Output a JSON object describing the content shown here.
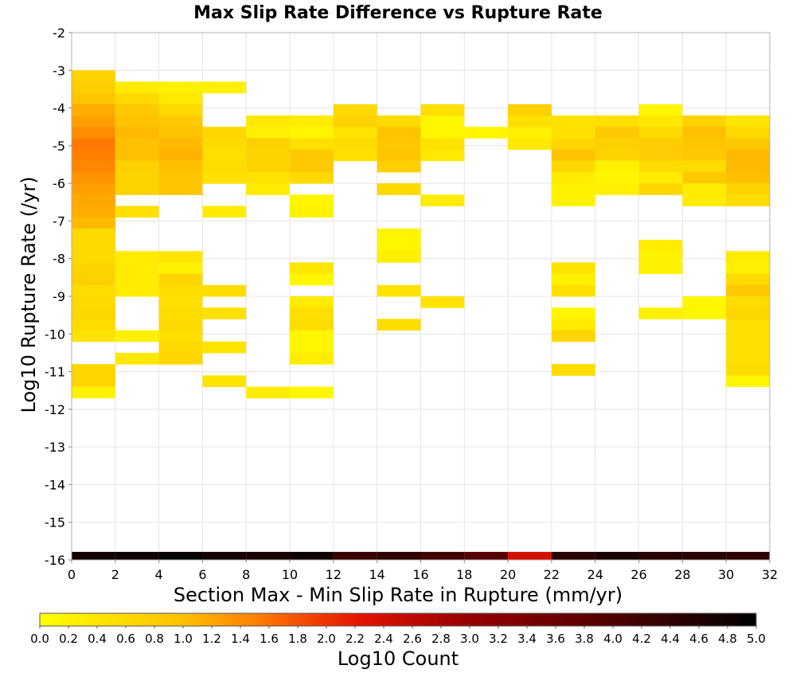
{
  "chart_data": {
    "type": "heatmap",
    "title": "Max Slip Rate Difference vs Rupture Rate",
    "xlabel": "Section Max - Min Slip Rate in Rupture (mm/yr)",
    "ylabel": "Log10 Rupture Rate (/yr)",
    "xlim": [
      0,
      32
    ],
    "ylim": [
      -16,
      -2
    ],
    "x_ticks": [
      "0",
      "2",
      "4",
      "6",
      "8",
      "10",
      "12",
      "14",
      "16",
      "18",
      "20",
      "22",
      "24",
      "26",
      "28",
      "30",
      "32"
    ],
    "y_ticks": [
      "-2",
      "-3",
      "-4",
      "-5",
      "-6",
      "-7",
      "-8",
      "-9",
      "-10",
      "-11",
      "-12",
      "-13",
      "-14",
      "-15",
      "-16"
    ],
    "bin_width_x": 2,
    "bin_height_y": 0.3,
    "grid": true,
    "colorbar": {
      "label": "Log10 Count",
      "min": 0.0,
      "max": 5.0,
      "ticks": [
        "0.0",
        "0.2",
        "0.4",
        "0.6",
        "0.8",
        "1.0",
        "1.2",
        "1.4",
        "1.6",
        "1.8",
        "2.0",
        "2.2",
        "2.4",
        "2.6",
        "2.8",
        "3.0",
        "3.2",
        "3.4",
        "3.6",
        "3.8",
        "4.0",
        "4.2",
        "4.4",
        "4.6",
        "4.8",
        "5.0"
      ]
    },
    "column_totals": [
      4.75,
      4.8,
      4.9,
      4.75,
      4.7,
      4.8,
      4.3,
      4.4,
      4.2,
      3.9,
      2.4,
      4.5,
      4.7,
      4.5,
      4.5,
      4.4
    ],
    "cells": [
      {
        "x": 0,
        "y": -3.0,
        "v": 0.7
      },
      {
        "x": 0,
        "y": -3.3,
        "v": 0.8
      },
      {
        "x": 0,
        "y": -3.6,
        "v": 0.9
      },
      {
        "x": 0,
        "y": -3.9,
        "v": 1.15
      },
      {
        "x": 0,
        "y": -4.2,
        "v": 1.25
      },
      {
        "x": 0,
        "y": -4.5,
        "v": 1.4
      },
      {
        "x": 0,
        "y": -4.8,
        "v": 1.55
      },
      {
        "x": 0,
        "y": -5.1,
        "v": 1.5
      },
      {
        "x": 0,
        "y": -5.4,
        "v": 1.45
      },
      {
        "x": 0,
        "y": -5.7,
        "v": 1.35
      },
      {
        "x": 0,
        "y": -6.0,
        "v": 1.25
      },
      {
        "x": 0,
        "y": -6.3,
        "v": 1.2
      },
      {
        "x": 0,
        "y": -6.6,
        "v": 1.15
      },
      {
        "x": 0,
        "y": -6.9,
        "v": 1.05
      },
      {
        "x": 0,
        "y": -7.2,
        "v": 0.6
      },
      {
        "x": 0,
        "y": -7.5,
        "v": 0.6
      },
      {
        "x": 0,
        "y": -7.8,
        "v": 0.6
      },
      {
        "x": 0,
        "y": -8.1,
        "v": 0.7
      },
      {
        "x": 0,
        "y": -8.4,
        "v": 0.75
      },
      {
        "x": 0,
        "y": -8.7,
        "v": 0.55
      },
      {
        "x": 0,
        "y": -9.0,
        "v": 0.6
      },
      {
        "x": 0,
        "y": -9.3,
        "v": 0.65
      },
      {
        "x": 0,
        "y": -9.6,
        "v": 0.55
      },
      {
        "x": 0,
        "y": -9.9,
        "v": 0.45
      },
      {
        "x": 0,
        "y": -10.8,
        "v": 0.65
      },
      {
        "x": 0,
        "y": -11.1,
        "v": 0.65
      },
      {
        "x": 0,
        "y": -11.4,
        "v": 0.2
      },
      {
        "x": 2,
        "y": -3.3,
        "v": 0.3
      },
      {
        "x": 2,
        "y": -3.6,
        "v": 0.6
      },
      {
        "x": 2,
        "y": -3.9,
        "v": 0.85
      },
      {
        "x": 2,
        "y": -4.2,
        "v": 0.95
      },
      {
        "x": 2,
        "y": -4.5,
        "v": 1.05
      },
      {
        "x": 2,
        "y": -4.8,
        "v": 1.0
      },
      {
        "x": 2,
        "y": -5.1,
        "v": 1.0
      },
      {
        "x": 2,
        "y": -5.4,
        "v": 0.75
      },
      {
        "x": 2,
        "y": -5.7,
        "v": 0.7
      },
      {
        "x": 2,
        "y": -6.0,
        "v": 0.7
      },
      {
        "x": 2,
        "y": -6.6,
        "v": 0.5
      },
      {
        "x": 2,
        "y": -7.8,
        "v": 0.3
      },
      {
        "x": 2,
        "y": -8.1,
        "v": 0.3
      },
      {
        "x": 2,
        "y": -8.4,
        "v": 0.3
      },
      {
        "x": 2,
        "y": -8.7,
        "v": 0.3
      },
      {
        "x": 2,
        "y": -9.9,
        "v": 0.25
      },
      {
        "x": 2,
        "y": -10.5,
        "v": 0.35
      },
      {
        "x": 4,
        "y": -3.3,
        "v": 0.2
      },
      {
        "x": 4,
        "y": -3.6,
        "v": 0.35
      },
      {
        "x": 4,
        "y": -3.9,
        "v": 0.6
      },
      {
        "x": 4,
        "y": -4.2,
        "v": 0.85
      },
      {
        "x": 4,
        "y": -4.5,
        "v": 0.95
      },
      {
        "x": 4,
        "y": -4.8,
        "v": 1.05
      },
      {
        "x": 4,
        "y": -5.1,
        "v": 1.1
      },
      {
        "x": 4,
        "y": -5.4,
        "v": 1.0
      },
      {
        "x": 4,
        "y": -5.7,
        "v": 0.9
      },
      {
        "x": 4,
        "y": -6.0,
        "v": 0.9
      },
      {
        "x": 4,
        "y": -7.8,
        "v": 0.4
      },
      {
        "x": 4,
        "y": -8.1,
        "v": 0.2
      },
      {
        "x": 4,
        "y": -8.4,
        "v": 0.65
      },
      {
        "x": 4,
        "y": -8.7,
        "v": 0.55
      },
      {
        "x": 4,
        "y": -9.0,
        "v": 0.5
      },
      {
        "x": 4,
        "y": -9.3,
        "v": 0.55
      },
      {
        "x": 4,
        "y": -9.6,
        "v": 0.6
      },
      {
        "x": 4,
        "y": -9.9,
        "v": 0.5
      },
      {
        "x": 4,
        "y": -10.2,
        "v": 0.6
      },
      {
        "x": 4,
        "y": -10.5,
        "v": 0.65
      },
      {
        "x": 6,
        "y": -3.3,
        "v": 0.2
      },
      {
        "x": 6,
        "y": -4.5,
        "v": 0.65
      },
      {
        "x": 6,
        "y": -4.8,
        "v": 0.55
      },
      {
        "x": 6,
        "y": -5.1,
        "v": 0.5
      },
      {
        "x": 6,
        "y": -5.4,
        "v": 0.55
      },
      {
        "x": 6,
        "y": -5.7,
        "v": 0.5
      },
      {
        "x": 6,
        "y": -6.6,
        "v": 0.3
      },
      {
        "x": 6,
        "y": -8.7,
        "v": 0.55
      },
      {
        "x": 6,
        "y": -9.3,
        "v": 0.5
      },
      {
        "x": 6,
        "y": -10.2,
        "v": 0.45
      },
      {
        "x": 6,
        "y": -11.1,
        "v": 0.45
      },
      {
        "x": 8,
        "y": -4.2,
        "v": 0.35
      },
      {
        "x": 8,
        "y": -4.5,
        "v": 0.25
      },
      {
        "x": 8,
        "y": -4.8,
        "v": 0.75
      },
      {
        "x": 8,
        "y": -5.1,
        "v": 0.7
      },
      {
        "x": 8,
        "y": -5.4,
        "v": 0.7
      },
      {
        "x": 8,
        "y": -5.7,
        "v": 0.45
      },
      {
        "x": 8,
        "y": -6.0,
        "v": 0.3
      },
      {
        "x": 8,
        "y": -11.4,
        "v": 0.3
      },
      {
        "x": 10,
        "y": -4.2,
        "v": 0.3
      },
      {
        "x": 10,
        "y": -4.5,
        "v": 0.15
      },
      {
        "x": 10,
        "y": -4.8,
        "v": 0.5
      },
      {
        "x": 10,
        "y": -5.1,
        "v": 0.85
      },
      {
        "x": 10,
        "y": -5.4,
        "v": 0.85
      },
      {
        "x": 10,
        "y": -5.7,
        "v": 0.6
      },
      {
        "x": 10,
        "y": -6.3,
        "v": 0.15
      },
      {
        "x": 10,
        "y": -6.6,
        "v": 0.2
      },
      {
        "x": 10,
        "y": -8.1,
        "v": 0.4
      },
      {
        "x": 10,
        "y": -8.4,
        "v": 0.15
      },
      {
        "x": 10,
        "y": -9.0,
        "v": 0.3
      },
      {
        "x": 10,
        "y": -9.3,
        "v": 0.5
      },
      {
        "x": 10,
        "y": -9.6,
        "v": 0.55
      },
      {
        "x": 10,
        "y": -9.9,
        "v": 0.15
      },
      {
        "x": 10,
        "y": -10.2,
        "v": 0.15
      },
      {
        "x": 10,
        "y": -10.5,
        "v": 0.3
      },
      {
        "x": 10,
        "y": -11.4,
        "v": 0.15
      },
      {
        "x": 12,
        "y": -3.9,
        "v": 0.6
      },
      {
        "x": 12,
        "y": -4.2,
        "v": 0.75
      },
      {
        "x": 12,
        "y": -4.5,
        "v": 0.45
      },
      {
        "x": 12,
        "y": -4.8,
        "v": 0.55
      },
      {
        "x": 12,
        "y": -5.1,
        "v": 0.5
      },
      {
        "x": 14,
        "y": -4.2,
        "v": 0.55
      },
      {
        "x": 14,
        "y": -4.5,
        "v": 0.95
      },
      {
        "x": 14,
        "y": -4.8,
        "v": 0.85
      },
      {
        "x": 14,
        "y": -5.1,
        "v": 0.9
      },
      {
        "x": 14,
        "y": -5.4,
        "v": 0.75
      },
      {
        "x": 14,
        "y": -6.0,
        "v": 0.6
      },
      {
        "x": 14,
        "y": -7.2,
        "v": 0.15
      },
      {
        "x": 14,
        "y": -7.5,
        "v": 0.15
      },
      {
        "x": 14,
        "y": -7.8,
        "v": 0.25
      },
      {
        "x": 14,
        "y": -8.7,
        "v": 0.45
      },
      {
        "x": 14,
        "y": -9.6,
        "v": 0.55
      },
      {
        "x": 16,
        "y": -3.9,
        "v": 0.5
      },
      {
        "x": 16,
        "y": -4.2,
        "v": 0.15
      },
      {
        "x": 16,
        "y": -4.5,
        "v": 0.15
      },
      {
        "x": 16,
        "y": -4.8,
        "v": 0.45
      },
      {
        "x": 16,
        "y": -5.1,
        "v": 0.35
      },
      {
        "x": 16,
        "y": -6.3,
        "v": 0.3
      },
      {
        "x": 16,
        "y": -9.0,
        "v": 0.45
      },
      {
        "x": 18,
        "y": -4.5,
        "v": 0.15
      },
      {
        "x": 20,
        "y": -3.9,
        "v": 0.75
      },
      {
        "x": 20,
        "y": -4.2,
        "v": 0.5
      },
      {
        "x": 20,
        "y": -4.5,
        "v": 0.25
      },
      {
        "x": 20,
        "y": -4.8,
        "v": 0.35
      },
      {
        "x": 22,
        "y": -4.2,
        "v": 0.45
      },
      {
        "x": 22,
        "y": -4.5,
        "v": 0.5
      },
      {
        "x": 22,
        "y": -4.8,
        "v": 0.65
      },
      {
        "x": 22,
        "y": -5.1,
        "v": 0.95
      },
      {
        "x": 22,
        "y": -5.4,
        "v": 0.6
      },
      {
        "x": 22,
        "y": -5.7,
        "v": 0.3
      },
      {
        "x": 22,
        "y": -6.0,
        "v": 0.2
      },
      {
        "x": 22,
        "y": -6.3,
        "v": 0.2
      },
      {
        "x": 22,
        "y": -8.1,
        "v": 0.45
      },
      {
        "x": 22,
        "y": -8.4,
        "v": 0.2
      },
      {
        "x": 22,
        "y": -8.7,
        "v": 0.5
      },
      {
        "x": 22,
        "y": -9.3,
        "v": 0.15
      },
      {
        "x": 22,
        "y": -9.6,
        "v": 0.3
      },
      {
        "x": 22,
        "y": -9.9,
        "v": 0.65
      },
      {
        "x": 22,
        "y": -10.8,
        "v": 0.55
      },
      {
        "x": 24,
        "y": -4.2,
        "v": 0.5
      },
      {
        "x": 24,
        "y": -4.5,
        "v": 0.85
      },
      {
        "x": 24,
        "y": -4.8,
        "v": 0.75
      },
      {
        "x": 24,
        "y": -5.1,
        "v": 0.7
      },
      {
        "x": 24,
        "y": -5.4,
        "v": 0.2
      },
      {
        "x": 24,
        "y": -5.7,
        "v": 0.15
      },
      {
        "x": 24,
        "y": -6.0,
        "v": 0.25
      },
      {
        "x": 26,
        "y": -3.9,
        "v": 0.15
      },
      {
        "x": 26,
        "y": -4.2,
        "v": 0.35
      },
      {
        "x": 26,
        "y": -4.5,
        "v": 0.6
      },
      {
        "x": 26,
        "y": -4.8,
        "v": 0.8
      },
      {
        "x": 26,
        "y": -5.1,
        "v": 0.8
      },
      {
        "x": 26,
        "y": -5.4,
        "v": 0.55
      },
      {
        "x": 26,
        "y": -5.7,
        "v": 0.3
      },
      {
        "x": 26,
        "y": -6.0,
        "v": 0.65
      },
      {
        "x": 26,
        "y": -7.5,
        "v": 0.3
      },
      {
        "x": 26,
        "y": -7.8,
        "v": 0.2
      },
      {
        "x": 26,
        "y": -8.1,
        "v": 0.2
      },
      {
        "x": 26,
        "y": -9.3,
        "v": 0.2
      },
      {
        "x": 28,
        "y": -4.2,
        "v": 0.7
      },
      {
        "x": 28,
        "y": -4.5,
        "v": 1.0
      },
      {
        "x": 28,
        "y": -4.8,
        "v": 0.9
      },
      {
        "x": 28,
        "y": -5.1,
        "v": 0.85
      },
      {
        "x": 28,
        "y": -5.4,
        "v": 0.55
      },
      {
        "x": 28,
        "y": -5.7,
        "v": 0.85
      },
      {
        "x": 28,
        "y": -6.0,
        "v": 0.3
      },
      {
        "x": 28,
        "y": -6.3,
        "v": 0.3
      },
      {
        "x": 28,
        "y": -9.0,
        "v": 0.15
      },
      {
        "x": 28,
        "y": -9.3,
        "v": 0.15
      },
      {
        "x": 30,
        "y": -4.2,
        "v": 0.4
      },
      {
        "x": 30,
        "y": -4.5,
        "v": 0.6
      },
      {
        "x": 30,
        "y": -4.8,
        "v": 0.85
      },
      {
        "x": 30,
        "y": -5.1,
        "v": 1.05
      },
      {
        "x": 30,
        "y": -5.4,
        "v": 1.05
      },
      {
        "x": 30,
        "y": -5.7,
        "v": 1.0
      },
      {
        "x": 30,
        "y": -6.0,
        "v": 0.7
      },
      {
        "x": 30,
        "y": -6.3,
        "v": 0.55
      },
      {
        "x": 30,
        "y": -7.8,
        "v": 0.3
      },
      {
        "x": 30,
        "y": -8.1,
        "v": 0.25
      },
      {
        "x": 30,
        "y": -8.4,
        "v": 0.55
      },
      {
        "x": 30,
        "y": -8.7,
        "v": 0.85
      },
      {
        "x": 30,
        "y": -9.0,
        "v": 0.55
      },
      {
        "x": 30,
        "y": -9.3,
        "v": 0.65
      },
      {
        "x": 30,
        "y": -9.6,
        "v": 0.5
      },
      {
        "x": 30,
        "y": -9.9,
        "v": 0.5
      },
      {
        "x": 30,
        "y": -10.2,
        "v": 0.5
      },
      {
        "x": 30,
        "y": -10.5,
        "v": 0.5
      },
      {
        "x": 30,
        "y": -10.8,
        "v": 0.55
      },
      {
        "x": 30,
        "y": -11.1,
        "v": 0.15
      }
    ]
  }
}
